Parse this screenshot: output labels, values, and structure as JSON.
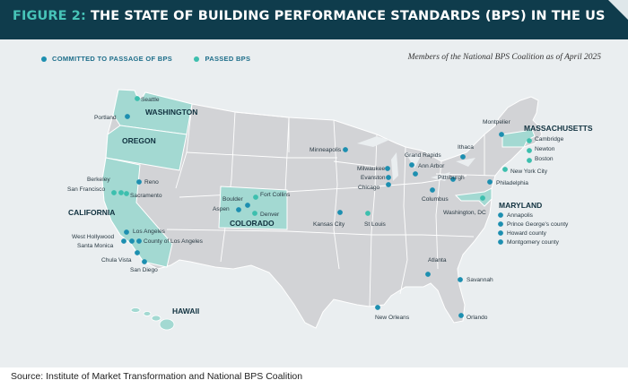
{
  "header": {
    "prefix": "FIGURE 2:",
    "title": "THE STATE OF BUILDING PERFORMANCE STANDARDS (BPS) IN THE US"
  },
  "legend": {
    "committed": "COMMITTED TO PASSAGE OF BPS",
    "passed": "PASSED BPS"
  },
  "subtitle": "Members of the National BPS Coalition as of April 2025",
  "source": "Source: Institute of Market Transformation and National BPS Coalition",
  "colors": {
    "committed": "#1d8fb0",
    "passed": "#3dbfae",
    "passed_state_fill": "#a3d9d2",
    "land": "#d2d3d6",
    "border": "#ffffff",
    "header": "#0f3c4c",
    "accent": "#47c4b8"
  },
  "states": {
    "washington": "WASHINGTON",
    "oregon": "OREGON",
    "california": "CALIFORNIA",
    "colorado": "COLORADO",
    "hawaii": "HAWAII",
    "massachusetts": "MASSACHUSETTS",
    "maryland": "MARYLAND"
  },
  "cities": {
    "seattle": "Seattle",
    "portland": "Portland",
    "berkeley": "Berkeley",
    "san_francisco": "San Francisco",
    "reno": "Reno",
    "sacramento": "Sacramento",
    "los_angeles": "Los Angeles",
    "west_hollywood": "West Hollywood",
    "santa_monica": "Santa Monica",
    "county_of_los_angeles": "County of Los Angeles",
    "chula_vista": "Chula Vista",
    "san_diego": "San Diego",
    "boulder": "Boulder",
    "fort_collins": "Fort Collins",
    "aspen": "Aspen",
    "denver": "Denver",
    "minneapolis": "Minneapolis",
    "kansas_city": "Kansas City",
    "st_louis": "St Louis",
    "milwaukee": "Milwaukee",
    "evanston": "Evanston",
    "chicago": "Chicago",
    "grand_rapids": "Grand Rapids",
    "ann_arbor": "Ann Arbor",
    "columbus": "Columbus",
    "pittsburgh": "Pittsburgh",
    "ithaca": "Ithaca",
    "montpelier": "Montpelier",
    "cambridge": "Cambridge",
    "newton": "Newton",
    "boston": "Boston",
    "new_york_city": "New York City",
    "philadelphia": "Philadelphia",
    "washington_dc": "Washington, DC",
    "annapolis": "Annapolis",
    "prince_georges": "Prince George's county",
    "howard": "Howard county",
    "montgomery": "Montgomery county",
    "atlanta": "Atlanta",
    "savannah": "Savannah",
    "new_orleans": "New Orleans",
    "orlando": "Orlando"
  },
  "points": [
    {
      "city": "seattle",
      "status": "passed"
    },
    {
      "city": "portland",
      "status": "committed"
    },
    {
      "city": "berkeley",
      "status": "passed"
    },
    {
      "city": "san_francisco",
      "status": "passed"
    },
    {
      "city": "sacramento",
      "status": "passed"
    },
    {
      "city": "reno",
      "status": "committed"
    },
    {
      "city": "los_angeles",
      "status": "committed"
    },
    {
      "city": "west_hollywood",
      "status": "committed"
    },
    {
      "city": "santa_monica",
      "status": "committed"
    },
    {
      "city": "county_of_los_angeles",
      "status": "committed"
    },
    {
      "city": "chula_vista",
      "status": "committed"
    },
    {
      "city": "san_diego",
      "status": "committed"
    },
    {
      "city": "boulder",
      "status": "committed"
    },
    {
      "city": "fort_collins",
      "status": "passed"
    },
    {
      "city": "aspen",
      "status": "committed"
    },
    {
      "city": "denver",
      "status": "passed"
    },
    {
      "city": "minneapolis",
      "status": "committed"
    },
    {
      "city": "kansas_city",
      "status": "committed"
    },
    {
      "city": "st_louis",
      "status": "passed"
    },
    {
      "city": "milwaukee",
      "status": "committed"
    },
    {
      "city": "evanston",
      "status": "committed"
    },
    {
      "city": "chicago",
      "status": "committed"
    },
    {
      "city": "grand_rapids",
      "status": "committed"
    },
    {
      "city": "ann_arbor",
      "status": "committed"
    },
    {
      "city": "columbus",
      "status": "committed"
    },
    {
      "city": "pittsburgh",
      "status": "committed"
    },
    {
      "city": "ithaca",
      "status": "committed"
    },
    {
      "city": "montpelier",
      "status": "committed"
    },
    {
      "city": "cambridge",
      "status": "passed"
    },
    {
      "city": "newton",
      "status": "passed"
    },
    {
      "city": "boston",
      "status": "passed"
    },
    {
      "city": "new_york_city",
      "status": "passed"
    },
    {
      "city": "philadelphia",
      "status": "committed"
    },
    {
      "city": "washington_dc",
      "status": "passed"
    },
    {
      "city": "annapolis",
      "status": "committed"
    },
    {
      "city": "prince_georges",
      "status": "committed"
    },
    {
      "city": "howard",
      "status": "committed"
    },
    {
      "city": "montgomery",
      "status": "committed"
    },
    {
      "city": "atlanta",
      "status": "committed"
    },
    {
      "city": "savannah",
      "status": "committed"
    },
    {
      "city": "new_orleans",
      "status": "committed"
    },
    {
      "city": "orlando",
      "status": "committed"
    }
  ]
}
